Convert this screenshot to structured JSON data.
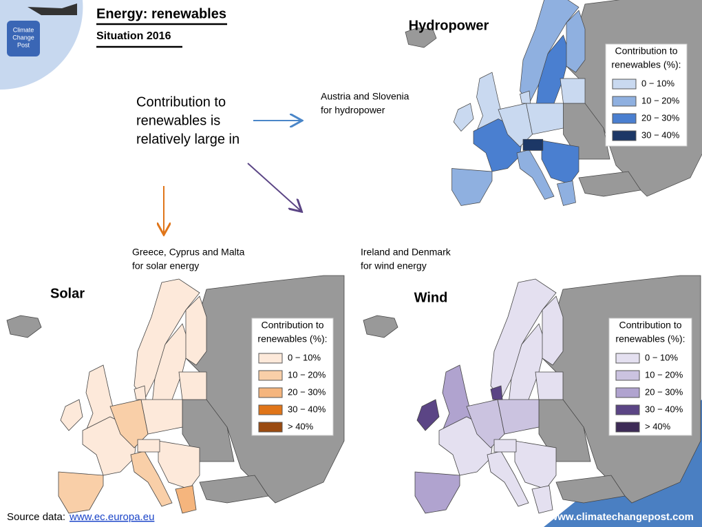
{
  "header": {
    "title": "Energy: renewables",
    "subtitle": "Situation 2016",
    "logo": [
      "Climate",
      "Change",
      "Post"
    ]
  },
  "intro": [
    "Contribution to",
    "renewables is",
    "relatively large in"
  ],
  "annotations": [
    [
      "Austria and Slovenia",
      "for hydropower"
    ],
    [
      "Greece, Cyprus and Malta",
      "for solar energy"
    ],
    [
      "Ireland and Denmark",
      "for wind energy"
    ]
  ],
  "maps": [
    {
      "title": "Hydropower",
      "legend": {
        "title": [
          "Contribution to",
          "renewables (%):"
        ],
        "items": [
          {
            "label": "0 − 10%",
            "color": "#c9d9f0"
          },
          {
            "label": "10 − 20%",
            "color": "#8fb0e0"
          },
          {
            "label": "20 − 30%",
            "color": "#4a7fd0"
          },
          {
            "label": "30 − 40%",
            "color": "#1c3766"
          }
        ]
      }
    },
    {
      "title": "Solar",
      "legend": {
        "title": [
          "Contribution to",
          "renewables (%):"
        ],
        "items": [
          {
            "label": "0 − 10%",
            "color": "#fde9da"
          },
          {
            "label": "10 − 20%",
            "color": "#f9cfa8"
          },
          {
            "label": "20 − 30%",
            "color": "#f5b57d"
          },
          {
            "label": "30 − 40%",
            "color": "#e07519"
          },
          {
            "label": "> 40%",
            "color": "#9a4a10"
          }
        ]
      }
    },
    {
      "title": "Wind",
      "legend": {
        "title": [
          "Contribution to",
          "renewables (%):"
        ],
        "items": [
          {
            "label": "0 − 10%",
            "color": "#e4e0f0"
          },
          {
            "label": "10 − 20%",
            "color": "#cbc3e0"
          },
          {
            "label": "20 − 30%",
            "color": "#b0a3cf"
          },
          {
            "label": "30 − 40%",
            "color": "#5b4585"
          },
          {
            "label": "> 40%",
            "color": "#3d2b56"
          }
        ]
      }
    }
  ],
  "footer": {
    "source_label": "Source data:",
    "source_link": "www.ec.europa.eu",
    "website": "www.climatechangepost.com"
  }
}
